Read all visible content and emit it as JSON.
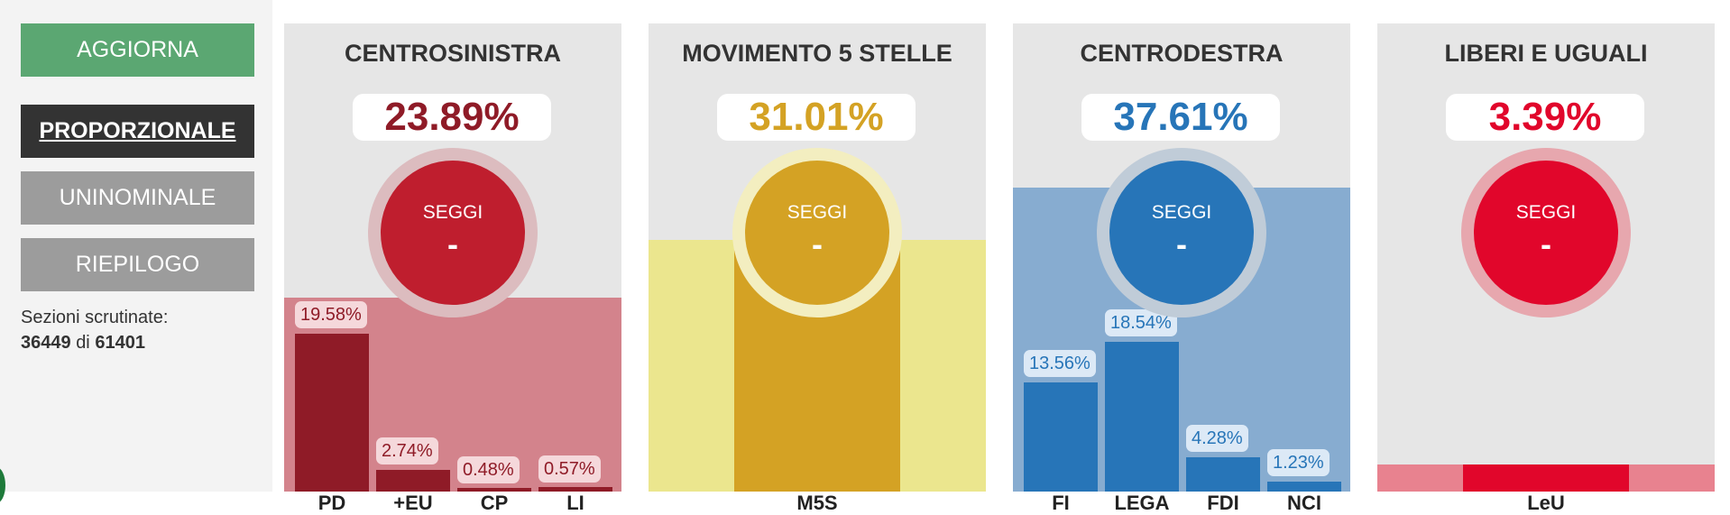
{
  "sidebar": {
    "update_label": "AGGIORNA",
    "tabs": [
      "PROPORZIONALE",
      "UNINOMINALE",
      "RIEPILOGO"
    ],
    "sections_label": "Sezioni scrutinate:",
    "sections_counted": "36449",
    "sections_of": "di",
    "sections_total": "61401"
  },
  "coalitions": [
    {
      "name": "CENTROSINISTRA",
      "percent": "23.89%",
      "color": "#8f1b27",
      "seats_label": "SEGGI",
      "seats_value": "-",
      "parties": [
        {
          "name": "PD",
          "percent": "19.58%",
          "value": 19.58
        },
        {
          "name": "+EU",
          "percent": "2.74%",
          "value": 2.74
        },
        {
          "name": "CP",
          "percent": "0.48%",
          "value": 0.48
        },
        {
          "name": "LI",
          "percent": "0.57%",
          "value": 0.57
        }
      ]
    },
    {
      "name": "MOVIMENTO 5 STELLE",
      "percent": "31.01%",
      "color": "#d4a224",
      "seats_label": "SEGGI",
      "seats_value": "-",
      "parties": [
        {
          "name": "M5S",
          "percent": "",
          "value": 31.01
        }
      ]
    },
    {
      "name": "CENTRODESTRA",
      "percent": "37.61%",
      "color": "#2775b8",
      "seats_label": "SEGGI",
      "seats_value": "-",
      "parties": [
        {
          "name": "FI",
          "percent": "13.56%",
          "value": 13.56
        },
        {
          "name": "LEGA",
          "percent": "18.54%",
          "value": 18.54
        },
        {
          "name": "FDI",
          "percent": "4.28%",
          "value": 4.28
        },
        {
          "name": "NCI",
          "percent": "1.23%",
          "value": 1.23
        }
      ]
    },
    {
      "name": "LIBERI E UGUALI",
      "percent": "3.39%",
      "color": "#e1062b",
      "seats_label": "SEGGI",
      "seats_value": "-",
      "parties": [
        {
          "name": "LeU",
          "percent": "",
          "value": 3.39
        }
      ]
    }
  ]
}
